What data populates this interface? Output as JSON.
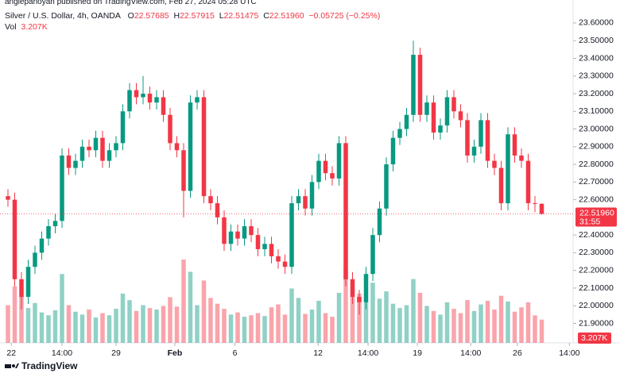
{
  "header": {
    "published": "anglepanoyan published on TradingView.com, Feb 27, 2024 05:28 UTC"
  },
  "legend": {
    "symbol": "Silver / U.S. Dollar, 4h, OANDA",
    "open_label": "O",
    "open": "22.57685",
    "high_label": "H",
    "high": "22.57915",
    "low_label": "L",
    "low": "22.51475",
    "close_label": "C",
    "close": "22.51960",
    "change": "−0.05725 (−0.25%)",
    "volume_label": "Vol",
    "volume": "3.207K"
  },
  "chart_data": {
    "type": "candlestick",
    "up_color": "#089981",
    "down_color": "#f23645",
    "open": [
      22.62,
      22.6,
      22.15,
      22.05,
      22.22,
      22.3,
      22.38,
      22.45,
      22.48,
      22.85,
      22.78,
      22.82,
      22.9,
      22.88,
      22.95,
      22.82,
      22.88,
      22.92,
      23.1,
      23.22,
      23.18,
      23.2,
      23.15,
      23.18,
      23.08,
      22.92,
      22.88,
      22.65,
      23.15,
      23.18,
      22.62,
      22.58,
      22.5,
      22.35,
      22.42,
      22.38,
      22.45,
      22.4,
      22.32,
      22.35,
      22.28,
      22.25,
      22.22,
      22.58,
      22.62,
      22.55,
      22.7,
      22.82,
      22.75,
      22.72,
      22.92,
      22.15,
      22.05,
      22.02,
      22.18,
      22.4,
      22.55,
      22.8,
      22.95,
      23.0,
      23.08,
      23.42,
      23.08,
      23.15,
      22.98,
      23.02,
      23.18,
      23.1,
      23.05,
      22.85,
      22.9,
      23.05,
      22.82,
      22.78,
      22.58,
      22.97,
      22.85,
      22.82,
      22.58,
      22.57685
    ],
    "high": [
      22.66,
      22.64,
      22.19,
      22.26,
      22.34,
      22.42,
      22.49,
      22.52,
      22.89,
      22.89,
      22.86,
      22.94,
      22.94,
      22.99,
      22.99,
      22.92,
      22.96,
      23.14,
      23.26,
      23.26,
      23.3,
      23.24,
      23.22,
      23.22,
      23.12,
      22.96,
      22.92,
      23.19,
      23.22,
      23.22,
      22.66,
      22.62,
      22.54,
      22.46,
      22.46,
      22.49,
      22.49,
      22.44,
      22.39,
      22.39,
      22.32,
      22.29,
      22.62,
      22.66,
      22.66,
      22.74,
      22.86,
      22.86,
      22.79,
      22.96,
      22.96,
      22.19,
      22.09,
      22.22,
      22.44,
      22.59,
      22.84,
      22.99,
      23.04,
      23.12,
      23.5,
      23.46,
      23.19,
      23.19,
      23.06,
      23.22,
      23.22,
      23.14,
      23.09,
      22.94,
      23.09,
      23.09,
      22.86,
      22.82,
      23.01,
      23.01,
      22.89,
      22.86,
      22.62,
      22.57915
    ],
    "low": [
      22.56,
      22.11,
      21.98,
      22.01,
      22.18,
      22.26,
      22.34,
      22.41,
      22.44,
      22.74,
      22.74,
      22.78,
      22.84,
      22.84,
      22.78,
      22.78,
      22.84,
      22.88,
      23.06,
      23.14,
      23.14,
      23.11,
      23.11,
      23.04,
      22.88,
      22.84,
      22.5,
      22.61,
      23.11,
      22.58,
      22.54,
      22.46,
      22.31,
      22.31,
      22.34,
      22.34,
      22.36,
      22.28,
      22.28,
      22.24,
      22.21,
      22.18,
      22.18,
      22.54,
      22.51,
      22.51,
      22.66,
      22.71,
      22.68,
      22.68,
      22.11,
      22.01,
      21.95,
      21.98,
      22.14,
      22.36,
      22.51,
      22.76,
      22.91,
      22.96,
      23.04,
      23.04,
      23.04,
      22.94,
      22.94,
      22.98,
      23.06,
      23.01,
      22.81,
      22.81,
      22.86,
      22.78,
      22.74,
      22.54,
      22.54,
      22.81,
      22.78,
      22.54,
      22.53,
      22.51475
    ],
    "close": [
      22.6,
      22.15,
      22.05,
      22.22,
      22.3,
      22.38,
      22.45,
      22.48,
      22.85,
      22.78,
      22.82,
      22.9,
      22.88,
      22.95,
      22.82,
      22.88,
      22.92,
      23.1,
      23.22,
      23.18,
      23.2,
      23.15,
      23.18,
      23.08,
      22.92,
      22.88,
      22.65,
      23.15,
      23.18,
      22.62,
      22.58,
      22.5,
      22.35,
      22.42,
      22.38,
      22.45,
      22.4,
      22.32,
      22.35,
      22.28,
      22.25,
      22.22,
      22.58,
      22.62,
      22.55,
      22.7,
      22.82,
      22.75,
      22.72,
      22.92,
      22.15,
      22.05,
      22.02,
      22.18,
      22.4,
      22.55,
      22.8,
      22.95,
      23.0,
      23.08,
      23.42,
      23.08,
      23.15,
      22.98,
      23.02,
      23.18,
      23.1,
      23.05,
      22.85,
      22.9,
      23.05,
      22.82,
      22.78,
      22.58,
      22.97,
      22.85,
      22.82,
      22.58,
      22.57685,
      22.5196
    ],
    "volume": [
      5200,
      7800,
      6500,
      4800,
      5500,
      4200,
      3800,
      4500,
      9500,
      5200,
      4300,
      3900,
      4600,
      3500,
      4100,
      3800,
      4700,
      6800,
      5900,
      4400,
      5200,
      4800,
      4600,
      5100,
      6300,
      5000,
      11500,
      9800,
      5200,
      8600,
      6200,
      5400,
      4700,
      3900,
      4200,
      3600,
      3800,
      4100,
      3700,
      4900,
      5300,
      3900,
      7500,
      6200,
      4000,
      4600,
      5800,
      4100,
      3600,
      6900,
      10200,
      7400,
      6800,
      5700,
      8300,
      6100,
      7100,
      5400,
      4800,
      5200,
      8800,
      6900,
      5100,
      4400,
      3900,
      5600,
      4700,
      4100,
      5900,
      4400,
      5300,
      5800,
      4600,
      6500,
      5700,
      4300,
      4900,
      5600,
      3800,
      3207
    ],
    "ylim": [
      21.79,
      23.73
    ],
    "yticks": [
      {
        "value": 23.6,
        "label": "23.60000"
      },
      {
        "value": 23.5,
        "label": "23.50000"
      },
      {
        "value": 23.4,
        "label": "23.40000"
      },
      {
        "value": 23.3,
        "label": "23.30000"
      },
      {
        "value": 23.2,
        "label": "23.20000"
      },
      {
        "value": 23.1,
        "label": "23.10000"
      },
      {
        "value": 23.0,
        "label": "23.00000"
      },
      {
        "value": 22.9,
        "label": "22.90000"
      },
      {
        "value": 22.8,
        "label": "22.80000"
      },
      {
        "value": 22.7,
        "label": "22.70000"
      },
      {
        "value": 22.6,
        "label": "22.60000"
      },
      {
        "value": 22.4,
        "label": "22.40000"
      },
      {
        "value": 22.3,
        "label": "22.30000"
      },
      {
        "value": 22.2,
        "label": "22.20000"
      },
      {
        "value": 22.1,
        "label": "22.10000"
      },
      {
        "value": 22.0,
        "label": "22.00000"
      },
      {
        "value": 21.9,
        "label": "21.90000"
      }
    ],
    "xticks": [
      {
        "value": 0.5,
        "label": "22"
      },
      {
        "value": 8,
        "label": "14:00"
      },
      {
        "value": 16,
        "label": "29"
      },
      {
        "value": 24.7,
        "label": "Feb"
      },
      {
        "value": 33.6,
        "label": "6"
      },
      {
        "value": 45.9,
        "label": "12"
      },
      {
        "value": 53.3,
        "label": "14:00"
      },
      {
        "value": 60.6,
        "label": "19"
      },
      {
        "value": 68.5,
        "label": "14:00"
      },
      {
        "value": 75.4,
        "label": "26"
      },
      {
        "value": 83.1,
        "label": "14:00"
      }
    ],
    "last_price": {
      "value": 22.5196,
      "label": "22.51960"
    },
    "countdown": "31:55"
  },
  "footer": {
    "brand": "TradingView"
  }
}
